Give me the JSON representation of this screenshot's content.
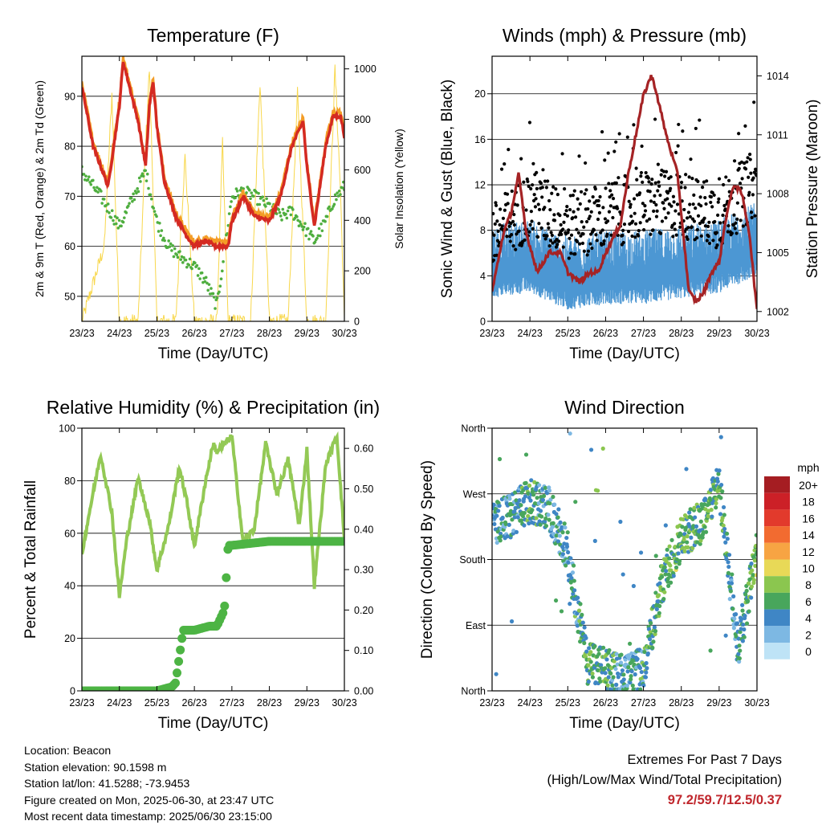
{
  "charts": {
    "temperature": {
      "type": "line",
      "title": "Temperature (F)",
      "xlabel": "Time (Day/UTC)",
      "ylabel_left": "2m & 9m T (Red, Orange) & 2m Td (Green)",
      "ylabel_right": "Solar Insolation (Yellow)",
      "x_ticks": [
        "23/23",
        "24/23",
        "25/23",
        "26/23",
        "27/23",
        "28/23",
        "29/23",
        "30/23"
      ],
      "y_left_ticks": [
        50,
        60,
        70,
        80,
        90
      ],
      "y_left_range": [
        45,
        98
      ],
      "y_right_ticks": [
        0,
        200,
        400,
        600,
        800,
        1000
      ],
      "y_right_range": [
        0,
        1050
      ],
      "colors": {
        "t2m": "#d42a22",
        "t9m": "#f39c26",
        "td": "#4fae3f",
        "solar": "#f8d74b"
      }
    },
    "winds": {
      "type": "scatter",
      "title": "Winds (mph) & Pressure (mb)",
      "xlabel": "Time (Day/UTC)",
      "ylabel_left": "Sonic Wind & Gust (Blue, Black)",
      "ylabel_right": "Station Pressure (Maroon)",
      "x_ticks": [
        "23/23",
        "24/23",
        "25/23",
        "26/23",
        "27/23",
        "28/23",
        "29/23",
        "30/23"
      ],
      "y_left_ticks": [
        0,
        4,
        8,
        12,
        16,
        20
      ],
      "y_left_range": [
        0,
        23.3
      ],
      "y_right_ticks": [
        1002,
        1005,
        1008,
        1011,
        1014
      ],
      "y_right_range": [
        1001.5,
        1015
      ],
      "colors": {
        "wind": "#4c97d3",
        "gust": "#000000",
        "pressure": "#a52325"
      }
    },
    "humidity": {
      "type": "line",
      "title": "Relative Humidity (%) & Precipitation (in)",
      "xlabel": "Time (Day/UTC)",
      "ylabel_left": "Percent & Total Rainfall",
      "x_ticks": [
        "23/23",
        "24/23",
        "25/23",
        "26/23",
        "27/23",
        "28/23",
        "29/23",
        "30/23"
      ],
      "y_left_ticks": [
        0,
        20,
        40,
        60,
        80,
        100
      ],
      "y_left_range": [
        0,
        100
      ],
      "y_right_ticks": [
        "0.00",
        "0.10",
        "0.20",
        "0.30",
        "0.40",
        "0.50",
        "0.60"
      ],
      "y_right_range": [
        0,
        0.65
      ],
      "colors": {
        "rh": "#93c955",
        "precip": "#4db444"
      }
    },
    "direction": {
      "type": "scatter",
      "title": "Wind Direction",
      "xlabel": "Time (Day/UTC)",
      "ylabel_left": "Direction (Colored By Speed)",
      "x_ticks": [
        "23/23",
        "24/23",
        "25/23",
        "26/23",
        "27/23",
        "28/23",
        "29/23",
        "30/23"
      ],
      "y_left_ticks": [
        "North",
        "East",
        "South",
        "West",
        "North"
      ],
      "y_left_range": [
        0,
        360
      ],
      "legend_title": "mph",
      "legend_labels": [
        "20+",
        "18",
        "16",
        "14",
        "12",
        "10",
        "8",
        "6",
        "4",
        "2",
        "0"
      ],
      "legend_colors": [
        "#a51d22",
        "#cc2027",
        "#e23a2c",
        "#f26b30",
        "#f7a443",
        "#e8d957",
        "#8bc64f",
        "#48a65c",
        "#3f86c5",
        "#7db8e3",
        "#bee3f6"
      ]
    }
  },
  "chart_data": [
    {
      "type": "line",
      "title": "Temperature (F)",
      "series": [
        {
          "name": "2m T",
          "x": [
            0,
            0.3,
            0.7,
            1.0,
            1.1,
            1.5,
            1.7,
            1.8,
            1.9,
            2.0,
            2.2,
            2.5,
            2.8,
            3.0,
            3.3,
            3.6,
            3.9,
            4.0,
            4.3,
            4.6,
            5.0,
            5.3,
            5.6,
            5.9,
            6.0,
            6.2,
            6.5,
            6.7,
            6.9,
            7.0
          ],
          "values": [
            92,
            80,
            72,
            88,
            97,
            85,
            76,
            88,
            93,
            84,
            73,
            66,
            62,
            60,
            61,
            60,
            60,
            65,
            70,
            66,
            65,
            70,
            80,
            85,
            76,
            64,
            80,
            86,
            86,
            82
          ]
        },
        {
          "name": "2m Td",
          "x": [
            0,
            0.5,
            1.0,
            1.2,
            1.5,
            1.7,
            2.0,
            2.3,
            2.6,
            3.0,
            3.3,
            3.6,
            4.0,
            4.3,
            4.6,
            5.0,
            5.3,
            5.6,
            5.9,
            6.2,
            6.5,
            6.7,
            7.0
          ],
          "values": [
            75,
            70,
            64,
            67,
            72,
            75,
            65,
            60,
            58,
            56,
            53,
            48,
            70,
            71,
            70,
            68,
            66,
            67,
            64,
            61,
            65,
            69,
            72
          ]
        },
        {
          "name": "Solar",
          "x": [
            0,
            0.6,
            0.8,
            1.0,
            1.5,
            1.7,
            1.8,
            2.0,
            2.5,
            2.75,
            3.0,
            3.6,
            3.75,
            3.9,
            4.5,
            4.75,
            5.0,
            5.5,
            5.75,
            6.0,
            6.5,
            6.75,
            6.9,
            7.0
          ],
          "values": [
            0,
            300,
            900,
            0,
            0,
            700,
            1000,
            0,
            0,
            650,
            0,
            0,
            700,
            0,
            0,
            950,
            0,
            0,
            900,
            0,
            0,
            1000,
            500,
            0
          ]
        }
      ]
    },
    {
      "type": "scatter",
      "title": "Winds (mph) & Pressure (mb)",
      "series": [
        {
          "name": "Pressure",
          "x": [
            0,
            0.3,
            0.5,
            0.7,
            0.9,
            1.2,
            1.5,
            1.8,
            2.0,
            2.3,
            2.6,
            2.8,
            3.0,
            3.4,
            3.6,
            3.8,
            4.0,
            4.2,
            4.3,
            4.6,
            4.9,
            5.2,
            5.4,
            5.6,
            5.8,
            6.0,
            6.2,
            6.4,
            6.6,
            6.8,
            7.0
          ],
          "values": [
            1003,
            1006,
            1007,
            1009,
            1006,
            1004,
            1005,
            1005,
            1004,
            1003.5,
            1004,
            1004,
            1005,
            1006.5,
            1009,
            1011,
            1013,
            1014,
            1013.5,
            1011,
            1009,
            1003,
            1002.5,
            1003,
            1004,
            1004.5,
            1007,
            1008.5,
            1008,
            1006,
            1002
          ]
        },
        {
          "name": "Sonic Wind",
          "x": [
            0,
            1,
            2,
            3,
            4,
            5,
            6,
            7
          ],
          "values": [
            4,
            4.5,
            3,
            3.5,
            3.5,
            4,
            4.5,
            6
          ]
        },
        {
          "name": "Gust",
          "x": [
            0,
            1,
            2,
            3,
            4,
            5,
            6,
            7
          ],
          "values": [
            7,
            10,
            8,
            9,
            10,
            10,
            9,
            12
          ]
        }
      ]
    },
    {
      "type": "line",
      "title": "Relative Humidity (%) & Precipitation (in)",
      "series": [
        {
          "name": "RH",
          "x": [
            0,
            0.2,
            0.5,
            0.8,
            1.0,
            1.2,
            1.5,
            1.8,
            2.0,
            2.3,
            2.6,
            2.8,
            3.0,
            3.3,
            3.5,
            3.6,
            4.0,
            4.3,
            4.6,
            4.9,
            5.2,
            5.5,
            5.8,
            6.0,
            6.2,
            6.5,
            6.8,
            7.0
          ],
          "values": [
            52,
            68,
            90,
            68,
            36,
            58,
            81,
            65,
            46,
            62,
            85,
            72,
            55,
            80,
            94,
            91,
            97,
            56,
            62,
            94,
            75,
            88,
            63,
            92,
            40,
            86,
            97,
            58
          ]
        },
        {
          "name": "Precip",
          "x": [
            0,
            1.0,
            2.0,
            2.4,
            2.5,
            2.7,
            3.0,
            3.4,
            3.6,
            3.8,
            3.9,
            4.0,
            5.0,
            6.0,
            7.0
          ],
          "values": [
            0,
            0,
            0,
            0.01,
            0.02,
            0.15,
            0.15,
            0.16,
            0.16,
            0.2,
            0.36,
            0.36,
            0.37,
            0.37,
            0.37
          ]
        }
      ]
    },
    {
      "type": "scatter",
      "title": "Wind Direction",
      "x_days": [
        0,
        0.5,
        1,
        1.5,
        2,
        2.5,
        3,
        3.5,
        4,
        4.5,
        5,
        5.5,
        6,
        6.5,
        7
      ],
      "direction_deg": [
        230,
        240,
        260,
        250,
        190,
        40,
        30,
        20,
        30,
        150,
        210,
        230,
        280,
        60,
        190
      ],
      "speed_mph": [
        4,
        4,
        6,
        4,
        4,
        6,
        6,
        4,
        5,
        6,
        7,
        6,
        6,
        4,
        8
      ]
    }
  ],
  "info": {
    "location": "Location: Beacon",
    "elevation": "Station elevation: 90.1598 m",
    "latlon": "Station lat/lon: 41.5288; -73.9453",
    "created": "Figure created on Mon, 2025-06-30, at 23:47 UTC",
    "recent": "Most recent data timestamp: 2025/06/30 23:15:00"
  },
  "extremes": {
    "heading": "Extremes For Past 7 Days",
    "subheading": "(High/Low/Max Wind/Total Precipitation)",
    "values": "97.2/59.7/12.5/0.37"
  }
}
